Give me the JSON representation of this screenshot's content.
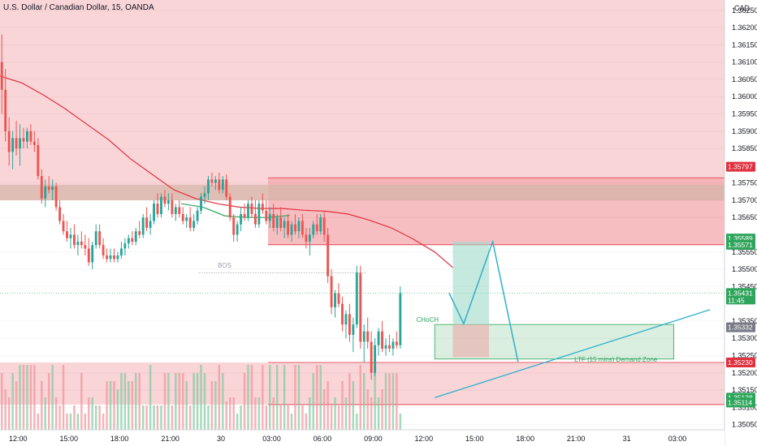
{
  "header": {
    "symbol_title": "U.S. Dollar / Canadian Dollar, 15, OANDA"
  },
  "axis": {
    "currency": "CAD"
  },
  "chart_data": {
    "type": "candlestick",
    "title": "U.S. Dollar / Canadian Dollar, 15, OANDA",
    "ylim": [
      1.35035,
      1.3628
    ],
    "xlim": [
      0,
      200
    ],
    "y_ticks": [
      "1.36250",
      "1.36200",
      "1.36150",
      "1.36100",
      "1.36050",
      "1.36000",
      "1.35950",
      "1.35900",
      "1.35850",
      "1.35750",
      "1.35700",
      "1.35650",
      "1.35550",
      "1.35500",
      "1.35450",
      "1.35350",
      "1.35300",
      "1.35250",
      "1.35200",
      "1.35150",
      "1.35100",
      "1.35050"
    ],
    "x_ticks": [
      {
        "label": "12:00",
        "x": 5
      },
      {
        "label": "15:00",
        "x": 19
      },
      {
        "label": "18:00",
        "x": 33
      },
      {
        "label": "21:00",
        "x": 47
      },
      {
        "label": "30",
        "x": 61
      },
      {
        "label": "03:00",
        "x": 75
      },
      {
        "label": "06:00",
        "x": 89
      },
      {
        "label": "09:00",
        "x": 103
      },
      {
        "label": "12:00",
        "x": 117
      },
      {
        "label": "15:00",
        "x": 131
      },
      {
        "label": "18:00",
        "x": 145
      },
      {
        "label": "21:00",
        "x": 159
      },
      {
        "label": "31",
        "x": 173
      },
      {
        "label": "03:00",
        "x": 187
      }
    ],
    "price_tags": [
      {
        "label": "1.35797",
        "value": 1.35797,
        "color": "#e0313e"
      },
      {
        "label": "1.35589",
        "value": 1.35589,
        "color": "#2fa55c"
      },
      {
        "label": "1.35571",
        "value": 1.35571,
        "color": "#2fa55c"
      },
      {
        "label": "1.35431",
        "value": 1.35431,
        "color": "#2fa55c",
        "extra": "11:45"
      },
      {
        "label": "1.35332",
        "value": 1.35332,
        "color": "#787b86"
      },
      {
        "label": "1.35230",
        "value": 1.3523,
        "color": "#e0313e"
      },
      {
        "label": "1.35128",
        "value": 1.35128,
        "color": "#2fa55c"
      },
      {
        "label": "1.35114",
        "value": 1.35114,
        "color": "#2fa55c"
      }
    ],
    "annotations": [
      {
        "text": "BOS",
        "x": 62,
        "y": 1.35505,
        "color": "#9aa0ac"
      },
      {
        "text": "CHoCH",
        "x": 118,
        "y": 1.35348,
        "color": "#2fa55c"
      },
      {
        "text": "LTF (15 mins) Demand Zone",
        "x": 170,
        "y": 1.35232,
        "color": "#2fa55c"
      }
    ],
    "zones": [
      {
        "name": "supply-upper",
        "x0": 0,
        "x1": 200,
        "y0": 1.357,
        "y1": 1.3628,
        "color": "#f7c7cb"
      },
      {
        "name": "supply-mid",
        "x0": 74,
        "x1": 200,
        "y0": 1.35571,
        "y1": 1.35765,
        "color": "#f4a8ad"
      },
      {
        "name": "supply-left",
        "x0": 0,
        "x1": 200,
        "y0": 1.357,
        "y1": 1.35745,
        "color": "#d6b6a9"
      },
      {
        "name": "demand-lower",
        "x0": 0,
        "x1": 200,
        "y0": 1.35108,
        "y1": 1.3523,
        "color": "#f7c7cb"
      },
      {
        "name": "demand-ltf",
        "x0": 120,
        "x1": 186,
        "y0": 1.3524,
        "y1": 1.3534,
        "color": "#cfead5"
      }
    ],
    "position_tool": {
      "x0": 125,
      "x1": 135,
      "entry": 1.3534,
      "target": 1.3558,
      "stop": 1.35245
    },
    "projection": {
      "points": [
        [
          124,
          1.35431
        ],
        [
          128,
          1.35342
        ],
        [
          136,
          1.3558
        ],
        [
          143,
          1.35232
        ]
      ]
    },
    "trendline": {
      "points": [
        [
          120,
          1.35128
        ],
        [
          196,
          1.35383
        ]
      ]
    },
    "ma_red": [
      [
        0,
        1.3606
      ],
      [
        6,
        1.3604
      ],
      [
        12,
        1.36005
      ],
      [
        18,
        1.35965
      ],
      [
        24,
        1.3592
      ],
      [
        30,
        1.35875
      ],
      [
        36,
        1.3582
      ],
      [
        42,
        1.35775
      ],
      [
        48,
        1.3573
      ],
      [
        54,
        1.35705
      ],
      [
        60,
        1.3569
      ],
      [
        66,
        1.3568
      ],
      [
        72,
        1.35676
      ],
      [
        78,
        1.35676
      ],
      [
        84,
        1.35671
      ],
      [
        90,
        1.35668
      ],
      [
        96,
        1.3566
      ],
      [
        102,
        1.35642
      ],
      [
        108,
        1.3562
      ],
      [
        114,
        1.35588
      ],
      [
        120,
        1.3555
      ],
      [
        125,
        1.35505
      ]
    ],
    "ma_green": [
      [
        50,
        1.3569
      ],
      [
        56,
        1.3568
      ],
      [
        62,
        1.35655
      ],
      [
        68,
        1.3565
      ],
      [
        74,
        1.3565
      ],
      [
        80,
        1.35656
      ]
    ],
    "candles": [
      {
        "x": 0,
        "o": 1.361,
        "h": 1.3618,
        "l": 1.3595,
        "c": 1.3602
      },
      {
        "x": 1,
        "o": 1.3602,
        "h": 1.3608,
        "l": 1.3587,
        "c": 1.359
      },
      {
        "x": 2,
        "o": 1.359,
        "h": 1.3594,
        "l": 1.358,
        "c": 1.3584
      },
      {
        "x": 3,
        "o": 1.3584,
        "h": 1.359,
        "l": 1.3579,
        "c": 1.3588
      },
      {
        "x": 4,
        "o": 1.3588,
        "h": 1.3593,
        "l": 1.3583,
        "c": 1.3585
      },
      {
        "x": 5,
        "o": 1.3585,
        "h": 1.3592,
        "l": 1.358,
        "c": 1.3588
      },
      {
        "x": 6,
        "o": 1.3588,
        "h": 1.3591,
        "l": 1.3585,
        "c": 1.3587
      },
      {
        "x": 7,
        "o": 1.3587,
        "h": 1.3591,
        "l": 1.3585,
        "c": 1.359
      },
      {
        "x": 8,
        "o": 1.359,
        "h": 1.3592,
        "l": 1.3586,
        "c": 1.3587
      },
      {
        "x": 9,
        "o": 1.3587,
        "h": 1.359,
        "l": 1.3584,
        "c": 1.3586
      },
      {
        "x": 10,
        "o": 1.3586,
        "h": 1.3588,
        "l": 1.3576,
        "c": 1.3577
      },
      {
        "x": 11,
        "o": 1.3577,
        "h": 1.3579,
        "l": 1.3569,
        "c": 1.35705
      },
      {
        "x": 12,
        "o": 1.35705,
        "h": 1.3576,
        "l": 1.3568,
        "c": 1.3574
      },
      {
        "x": 13,
        "o": 1.3574,
        "h": 1.3577,
        "l": 1.3572,
        "c": 1.3573
      },
      {
        "x": 14,
        "o": 1.3573,
        "h": 1.3576,
        "l": 1.357,
        "c": 1.3574
      },
      {
        "x": 15,
        "o": 1.3574,
        "h": 1.3575,
        "l": 1.3567,
        "c": 1.3568
      },
      {
        "x": 16,
        "o": 1.3568,
        "h": 1.357,
        "l": 1.3563,
        "c": 1.3564
      },
      {
        "x": 17,
        "o": 1.3564,
        "h": 1.3566,
        "l": 1.356,
        "c": 1.3561
      },
      {
        "x": 18,
        "o": 1.3561,
        "h": 1.3564,
        "l": 1.3558,
        "c": 1.3559
      },
      {
        "x": 19,
        "o": 1.3559,
        "h": 1.3562,
        "l": 1.3556,
        "c": 1.356
      },
      {
        "x": 20,
        "o": 1.356,
        "h": 1.3563,
        "l": 1.3556,
        "c": 1.3557
      },
      {
        "x": 21,
        "o": 1.3557,
        "h": 1.356,
        "l": 1.3554,
        "c": 1.3558
      },
      {
        "x": 22,
        "o": 1.3558,
        "h": 1.3561,
        "l": 1.3556,
        "c": 1.3557
      },
      {
        "x": 23,
        "o": 1.3557,
        "h": 1.356,
        "l": 1.3554,
        "c": 1.3556
      },
      {
        "x": 24,
        "o": 1.3556,
        "h": 1.3559,
        "l": 1.3551,
        "c": 1.3552
      },
      {
        "x": 25,
        "o": 1.3552,
        "h": 1.3558,
        "l": 1.355,
        "c": 1.3557
      },
      {
        "x": 26,
        "o": 1.3557,
        "h": 1.3563,
        "l": 1.3556,
        "c": 1.3561
      },
      {
        "x": 27,
        "o": 1.3561,
        "h": 1.3563,
        "l": 1.3556,
        "c": 1.3557
      },
      {
        "x": 28,
        "o": 1.3557,
        "h": 1.3559,
        "l": 1.3553,
        "c": 1.3554
      },
      {
        "x": 29,
        "o": 1.3554,
        "h": 1.3556,
        "l": 1.3552,
        "c": 1.3553
      },
      {
        "x": 30,
        "o": 1.3553,
        "h": 1.3556,
        "l": 1.3552,
        "c": 1.3554
      },
      {
        "x": 31,
        "o": 1.3554,
        "h": 1.3556,
        "l": 1.3552,
        "c": 1.3553
      },
      {
        "x": 32,
        "o": 1.3553,
        "h": 1.3555,
        "l": 1.3552,
        "c": 1.3554
      },
      {
        "x": 33,
        "o": 1.3554,
        "h": 1.3558,
        "l": 1.3553,
        "c": 1.3556
      },
      {
        "x": 34,
        "o": 1.3556,
        "h": 1.3559,
        "l": 1.3554,
        "c": 1.35575
      },
      {
        "x": 35,
        "o": 1.35575,
        "h": 1.356,
        "l": 1.3556,
        "c": 1.3559
      },
      {
        "x": 36,
        "o": 1.3559,
        "h": 1.3561,
        "l": 1.3557,
        "c": 1.3558
      },
      {
        "x": 37,
        "o": 1.3558,
        "h": 1.3562,
        "l": 1.3557,
        "c": 1.3561
      },
      {
        "x": 38,
        "o": 1.3561,
        "h": 1.3564,
        "l": 1.3559,
        "c": 1.356
      },
      {
        "x": 39,
        "o": 1.356,
        "h": 1.3566,
        "l": 1.3559,
        "c": 1.3565
      },
      {
        "x": 40,
        "o": 1.3565,
        "h": 1.3568,
        "l": 1.3561,
        "c": 1.3562
      },
      {
        "x": 41,
        "o": 1.3562,
        "h": 1.3566,
        "l": 1.356,
        "c": 1.3564
      },
      {
        "x": 42,
        "o": 1.3564,
        "h": 1.357,
        "l": 1.3563,
        "c": 1.3569
      },
      {
        "x": 43,
        "o": 1.3569,
        "h": 1.3572,
        "l": 1.3565,
        "c": 1.3566
      },
      {
        "x": 44,
        "o": 1.3566,
        "h": 1.3572,
        "l": 1.3565,
        "c": 1.3571
      },
      {
        "x": 45,
        "o": 1.3571,
        "h": 1.3573,
        "l": 1.3568,
        "c": 1.3569
      },
      {
        "x": 46,
        "o": 1.3569,
        "h": 1.3572,
        "l": 1.3567,
        "c": 1.357
      },
      {
        "x": 47,
        "o": 1.357,
        "h": 1.3572,
        "l": 1.3565,
        "c": 1.3566
      },
      {
        "x": 48,
        "o": 1.3566,
        "h": 1.3569,
        "l": 1.3564,
        "c": 1.3568
      },
      {
        "x": 49,
        "o": 1.3568,
        "h": 1.357,
        "l": 1.3565,
        "c": 1.3566
      },
      {
        "x": 50,
        "o": 1.3566,
        "h": 1.3568,
        "l": 1.3563,
        "c": 1.3564
      },
      {
        "x": 51,
        "o": 1.3564,
        "h": 1.3566,
        "l": 1.3562,
        "c": 1.3565
      },
      {
        "x": 52,
        "o": 1.3565,
        "h": 1.3568,
        "l": 1.3561,
        "c": 1.3562
      },
      {
        "x": 53,
        "o": 1.3562,
        "h": 1.3566,
        "l": 1.3561,
        "c": 1.3564
      },
      {
        "x": 54,
        "o": 1.3564,
        "h": 1.3568,
        "l": 1.3563,
        "c": 1.3567
      },
      {
        "x": 55,
        "o": 1.3567,
        "h": 1.3572,
        "l": 1.3566,
        "c": 1.3571
      },
      {
        "x": 56,
        "o": 1.3571,
        "h": 1.3574,
        "l": 1.3569,
        "c": 1.3572
      },
      {
        "x": 57,
        "o": 1.3572,
        "h": 1.3577,
        "l": 1.357,
        "c": 1.3576
      },
      {
        "x": 58,
        "o": 1.3576,
        "h": 1.3578,
        "l": 1.3574,
        "c": 1.3575
      },
      {
        "x": 59,
        "o": 1.3575,
        "h": 1.3577,
        "l": 1.3573,
        "c": 1.3576
      },
      {
        "x": 60,
        "o": 1.3576,
        "h": 1.3578,
        "l": 1.3572,
        "c": 1.3573
      },
      {
        "x": 61,
        "o": 1.3573,
        "h": 1.3577,
        "l": 1.3572,
        "c": 1.3576
      },
      {
        "x": 62,
        "o": 1.3576,
        "h": 1.35775,
        "l": 1.357,
        "c": 1.3571
      },
      {
        "x": 63,
        "o": 1.3571,
        "h": 1.3572,
        "l": 1.3564,
        "c": 1.3565
      },
      {
        "x": 64,
        "o": 1.3565,
        "h": 1.3566,
        "l": 1.3558,
        "c": 1.356
      },
      {
        "x": 65,
        "o": 1.356,
        "h": 1.3564,
        "l": 1.3558,
        "c": 1.3563
      },
      {
        "x": 66,
        "o": 1.3563,
        "h": 1.3568,
        "l": 1.3561,
        "c": 1.3566
      },
      {
        "x": 67,
        "o": 1.3566,
        "h": 1.3569,
        "l": 1.3564,
        "c": 1.3565
      },
      {
        "x": 68,
        "o": 1.3565,
        "h": 1.357,
        "l": 1.3564,
        "c": 1.3569
      },
      {
        "x": 69,
        "o": 1.3569,
        "h": 1.3571,
        "l": 1.3565,
        "c": 1.3566
      },
      {
        "x": 70,
        "o": 1.3566,
        "h": 1.357,
        "l": 1.3562,
        "c": 1.3563
      },
      {
        "x": 71,
        "o": 1.3563,
        "h": 1.357,
        "l": 1.3562,
        "c": 1.3569
      },
      {
        "x": 72,
        "o": 1.3569,
        "h": 1.3572,
        "l": 1.3566,
        "c": 1.3567
      },
      {
        "x": 73,
        "o": 1.3567,
        "h": 1.357,
        "l": 1.3563,
        "c": 1.3564
      },
      {
        "x": 74,
        "o": 1.3564,
        "h": 1.3568,
        "l": 1.3562,
        "c": 1.3566
      },
      {
        "x": 75,
        "o": 1.3566,
        "h": 1.3569,
        "l": 1.3561,
        "c": 1.3562
      },
      {
        "x": 76,
        "o": 1.3562,
        "h": 1.3566,
        "l": 1.356,
        "c": 1.3565
      },
      {
        "x": 77,
        "o": 1.3565,
        "h": 1.3568,
        "l": 1.3561,
        "c": 1.3562
      },
      {
        "x": 78,
        "o": 1.3562,
        "h": 1.3565,
        "l": 1.3559,
        "c": 1.3564
      },
      {
        "x": 79,
        "o": 1.3564,
        "h": 1.3566,
        "l": 1.3559,
        "c": 1.356
      },
      {
        "x": 80,
        "o": 1.356,
        "h": 1.3564,
        "l": 1.3558,
        "c": 1.3563
      },
      {
        "x": 81,
        "o": 1.3563,
        "h": 1.3566,
        "l": 1.356,
        "c": 1.3561
      },
      {
        "x": 82,
        "o": 1.3561,
        "h": 1.3565,
        "l": 1.3559,
        "c": 1.3564
      },
      {
        "x": 83,
        "o": 1.3564,
        "h": 1.3566,
        "l": 1.3559,
        "c": 1.356
      },
      {
        "x": 84,
        "o": 1.356,
        "h": 1.3562,
        "l": 1.3556,
        "c": 1.3558
      },
      {
        "x": 85,
        "o": 1.3558,
        "h": 1.3562,
        "l": 1.3554,
        "c": 1.356
      },
      {
        "x": 86,
        "o": 1.356,
        "h": 1.3564,
        "l": 1.3559,
        "c": 1.3563
      },
      {
        "x": 87,
        "o": 1.3563,
        "h": 1.3566,
        "l": 1.356,
        "c": 1.3561
      },
      {
        "x": 88,
        "o": 1.3561,
        "h": 1.3566,
        "l": 1.356,
        "c": 1.3565
      },
      {
        "x": 89,
        "o": 1.3565,
        "h": 1.3567,
        "l": 1.3558,
        "c": 1.356
      },
      {
        "x": 90,
        "o": 1.356,
        "h": 1.3562,
        "l": 1.3546,
        "c": 1.3548
      },
      {
        "x": 91,
        "o": 1.3548,
        "h": 1.355,
        "l": 1.3537,
        "c": 1.3539
      },
      {
        "x": 92,
        "o": 1.3539,
        "h": 1.3544,
        "l": 1.3536,
        "c": 1.3543
      },
      {
        "x": 93,
        "o": 1.3543,
        "h": 1.3546,
        "l": 1.3539,
        "c": 1.354
      },
      {
        "x": 94,
        "o": 1.354,
        "h": 1.3542,
        "l": 1.3532,
        "c": 1.3534
      },
      {
        "x": 95,
        "o": 1.3534,
        "h": 1.3538,
        "l": 1.353,
        "c": 1.3537
      },
      {
        "x": 96,
        "o": 1.3537,
        "h": 1.354,
        "l": 1.3529,
        "c": 1.3531
      },
      {
        "x": 97,
        "o": 1.3531,
        "h": 1.3536,
        "l": 1.3526,
        "c": 1.3534
      },
      {
        "x": 98,
        "o": 1.3534,
        "h": 1.3551,
        "l": 1.3533,
        "c": 1.3549
      },
      {
        "x": 99,
        "o": 1.3549,
        "h": 1.3551,
        "l": 1.3527,
        "c": 1.3529
      },
      {
        "x": 100,
        "o": 1.3529,
        "h": 1.3534,
        "l": 1.3523,
        "c": 1.3532
      },
      {
        "x": 101,
        "o": 1.3532,
        "h": 1.3536,
        "l": 1.3527,
        "c": 1.3529
      },
      {
        "x": 102,
        "o": 1.3529,
        "h": 1.3532,
        "l": 1.3518,
        "c": 1.352
      },
      {
        "x": 103,
        "o": 1.352,
        "h": 1.353,
        "l": 1.3519,
        "c": 1.3528
      },
      {
        "x": 104,
        "o": 1.3528,
        "h": 1.3533,
        "l": 1.3525,
        "c": 1.3532
      },
      {
        "x": 105,
        "o": 1.3532,
        "h": 1.3535,
        "l": 1.3526,
        "c": 1.3527
      },
      {
        "x": 106,
        "o": 1.3527,
        "h": 1.353,
        "l": 1.3525,
        "c": 1.3528
      },
      {
        "x": 107,
        "o": 1.3528,
        "h": 1.3531,
        "l": 1.3526,
        "c": 1.3527
      },
      {
        "x": 108,
        "o": 1.3527,
        "h": 1.353,
        "l": 1.3525,
        "c": 1.3529
      },
      {
        "x": 109,
        "o": 1.3529,
        "h": 1.3532,
        "l": 1.3527,
        "c": 1.3528
      },
      {
        "x": 110,
        "o": 1.3528,
        "h": 1.3545,
        "l": 1.3527,
        "c": 1.35431
      }
    ]
  }
}
